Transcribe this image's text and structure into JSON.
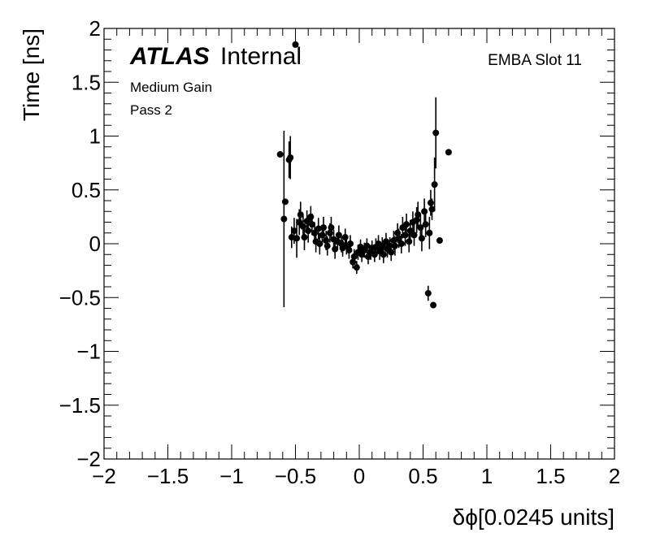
{
  "chart_data": {
    "type": "scatter",
    "title": "",
    "xlabel": "δϕ[0.0245 units]",
    "ylabel": "Time [ns]",
    "xlim": [
      -2,
      2
    ],
    "ylim": [
      -2,
      2
    ],
    "x_ticks": [
      {
        "value": -2,
        "label": "−2"
      },
      {
        "value": -1.5,
        "label": "−1.5"
      },
      {
        "value": -1,
        "label": "−1"
      },
      {
        "value": -0.5,
        "label": "−0.5"
      },
      {
        "value": 0,
        "label": "0"
      },
      {
        "value": 0.5,
        "label": "0.5"
      },
      {
        "value": 1,
        "label": "1"
      },
      {
        "value": 1.5,
        "label": "1.5"
      },
      {
        "value": 2,
        "label": "2"
      }
    ],
    "y_ticks": [
      {
        "value": -2,
        "label": "−2"
      },
      {
        "value": -1.5,
        "label": "−1.5"
      },
      {
        "value": -1,
        "label": "−1"
      },
      {
        "value": -0.5,
        "label": "−0.5"
      },
      {
        "value": 0,
        "label": "0"
      },
      {
        "value": 0.5,
        "label": "0.5"
      },
      {
        "value": 1,
        "label": "1"
      },
      {
        "value": 1.5,
        "label": "1.5"
      },
      {
        "value": 2,
        "label": "2"
      }
    ],
    "minor_divisions": 5,
    "grid": false,
    "annotations": {
      "atlas_bold": "ATLAS",
      "atlas_rest": "Internal",
      "gain": "Medium Gain",
      "pass": "Pass 2",
      "slot": "EMBA Slot 11"
    },
    "series": [
      {
        "marker": "filled-circle",
        "color": "#000000",
        "points": [
          {
            "x": -0.62,
            "y": 0.83,
            "err": 0.0
          },
          {
            "x": -0.59,
            "y": 0.23,
            "err": 0.82
          },
          {
            "x": -0.58,
            "y": 0.39,
            "err": 0.0
          },
          {
            "x": -0.55,
            "y": 0.78,
            "err": 0.17
          },
          {
            "x": -0.54,
            "y": 0.8,
            "err": 0.2
          },
          {
            "x": -0.5,
            "y": 1.85,
            "err": 0.0
          },
          {
            "x": -0.53,
            "y": 0.06,
            "err": 0.1
          },
          {
            "x": -0.51,
            "y": 0.12,
            "err": 0.12
          },
          {
            "x": -0.49,
            "y": 0.05,
            "err": 0.18
          },
          {
            "x": -0.47,
            "y": 0.2,
            "err": 0.12
          },
          {
            "x": -0.46,
            "y": 0.27,
            "err": 0.12
          },
          {
            "x": -0.44,
            "y": 0.16,
            "err": 0.1
          },
          {
            "x": -0.43,
            "y": 0.06,
            "err": 0.12
          },
          {
            "x": -0.41,
            "y": 0.21,
            "err": 0.1
          },
          {
            "x": -0.4,
            "y": 0.12,
            "err": 0.11
          },
          {
            "x": -0.38,
            "y": 0.25,
            "err": 0.1
          },
          {
            "x": -0.37,
            "y": 0.18,
            "err": 0.1
          },
          {
            "x": -0.35,
            "y": 0.1,
            "err": 0.1
          },
          {
            "x": -0.34,
            "y": 0.02,
            "err": 0.1
          },
          {
            "x": -0.32,
            "y": 0.14,
            "err": 0.1
          },
          {
            "x": -0.31,
            "y": 0.0,
            "err": 0.1
          },
          {
            "x": -0.29,
            "y": 0.08,
            "err": 0.09
          },
          {
            "x": -0.28,
            "y": 0.15,
            "err": 0.1
          },
          {
            "x": -0.26,
            "y": 0.03,
            "err": 0.09
          },
          {
            "x": -0.25,
            "y": -0.02,
            "err": 0.09
          },
          {
            "x": -0.23,
            "y": 0.1,
            "err": 0.09
          },
          {
            "x": -0.22,
            "y": 0.15,
            "err": 0.1
          },
          {
            "x": -0.2,
            "y": 0.04,
            "err": 0.09
          },
          {
            "x": -0.19,
            "y": -0.05,
            "err": 0.09
          },
          {
            "x": -0.17,
            "y": 0.02,
            "err": 0.08
          },
          {
            "x": -0.16,
            "y": 0.08,
            "err": 0.09
          },
          {
            "x": -0.14,
            "y": 0.0,
            "err": 0.08
          },
          {
            "x": -0.13,
            "y": -0.04,
            "err": 0.08
          },
          {
            "x": -0.11,
            "y": 0.06,
            "err": 0.08
          },
          {
            "x": -0.1,
            "y": -0.02,
            "err": 0.08
          },
          {
            "x": -0.08,
            "y": -0.06,
            "err": 0.08
          },
          {
            "x": -0.07,
            "y": 0.0,
            "err": 0.08
          },
          {
            "x": -0.05,
            "y": -0.17,
            "err": 0.06
          },
          {
            "x": -0.04,
            "y": -0.12,
            "err": 0.07
          },
          {
            "x": -0.02,
            "y": -0.22,
            "err": 0.06
          },
          {
            "x": -0.01,
            "y": -0.08,
            "err": 0.07
          },
          {
            "x": 0.01,
            "y": -0.03,
            "err": 0.07
          },
          {
            "x": 0.02,
            "y": -0.1,
            "err": 0.07
          },
          {
            "x": 0.04,
            "y": -0.06,
            "err": 0.07
          },
          {
            "x": 0.06,
            "y": -0.02,
            "err": 0.07
          },
          {
            "x": 0.07,
            "y": -0.12,
            "err": 0.07
          },
          {
            "x": 0.09,
            "y": -0.08,
            "err": 0.07
          },
          {
            "x": 0.1,
            "y": -0.04,
            "err": 0.07
          },
          {
            "x": 0.12,
            "y": -0.1,
            "err": 0.07
          },
          {
            "x": 0.13,
            "y": -0.03,
            "err": 0.08
          },
          {
            "x": 0.15,
            "y": 0.0,
            "err": 0.08
          },
          {
            "x": 0.16,
            "y": -0.07,
            "err": 0.08
          },
          {
            "x": 0.18,
            "y": -0.02,
            "err": 0.08
          },
          {
            "x": 0.19,
            "y": -0.1,
            "err": 0.08
          },
          {
            "x": 0.21,
            "y": 0.02,
            "err": 0.08
          },
          {
            "x": 0.22,
            "y": -0.05,
            "err": 0.08
          },
          {
            "x": 0.24,
            "y": -0.02,
            "err": 0.08
          },
          {
            "x": 0.25,
            "y": -0.08,
            "err": 0.08
          },
          {
            "x": 0.27,
            "y": 0.03,
            "err": 0.09
          },
          {
            "x": 0.28,
            "y": -0.02,
            "err": 0.09
          },
          {
            "x": 0.3,
            "y": 0.1,
            "err": 0.09
          },
          {
            "x": 0.31,
            "y": 0.05,
            "err": 0.09
          },
          {
            "x": 0.33,
            "y": 0.0,
            "err": 0.09
          },
          {
            "x": 0.34,
            "y": 0.15,
            "err": 0.1
          },
          {
            "x": 0.36,
            "y": 0.08,
            "err": 0.1
          },
          {
            "x": 0.37,
            "y": 0.18,
            "err": 0.1
          },
          {
            "x": 0.39,
            "y": 0.02,
            "err": 0.1
          },
          {
            "x": 0.4,
            "y": 0.12,
            "err": 0.1
          },
          {
            "x": 0.42,
            "y": 0.2,
            "err": 0.1
          },
          {
            "x": 0.43,
            "y": 0.08,
            "err": 0.1
          },
          {
            "x": 0.45,
            "y": 0.22,
            "err": 0.12
          },
          {
            "x": 0.46,
            "y": 0.27,
            "err": 0.12
          },
          {
            "x": 0.48,
            "y": 0.15,
            "err": 0.12
          },
          {
            "x": 0.49,
            "y": 0.05,
            "err": 0.12
          },
          {
            "x": 0.51,
            "y": 0.3,
            "err": 0.12
          },
          {
            "x": 0.52,
            "y": 0.18,
            "err": 0.12
          },
          {
            "x": 0.54,
            "y": -0.46,
            "err": 0.07
          },
          {
            "x": 0.55,
            "y": 0.1,
            "err": 0.15
          },
          {
            "x": 0.56,
            "y": 0.38,
            "err": 0.12
          },
          {
            "x": 0.57,
            "y": 0.32,
            "err": 0.1
          },
          {
            "x": 0.58,
            "y": -0.57,
            "err": 0.0
          },
          {
            "x": 0.59,
            "y": 0.55,
            "err": 0.25
          },
          {
            "x": 0.6,
            "y": 1.03,
            "err": 0.33
          },
          {
            "x": 0.63,
            "y": 0.03,
            "err": 0.0
          },
          {
            "x": 0.7,
            "y": 0.85,
            "err": 0.0
          }
        ]
      }
    ]
  }
}
